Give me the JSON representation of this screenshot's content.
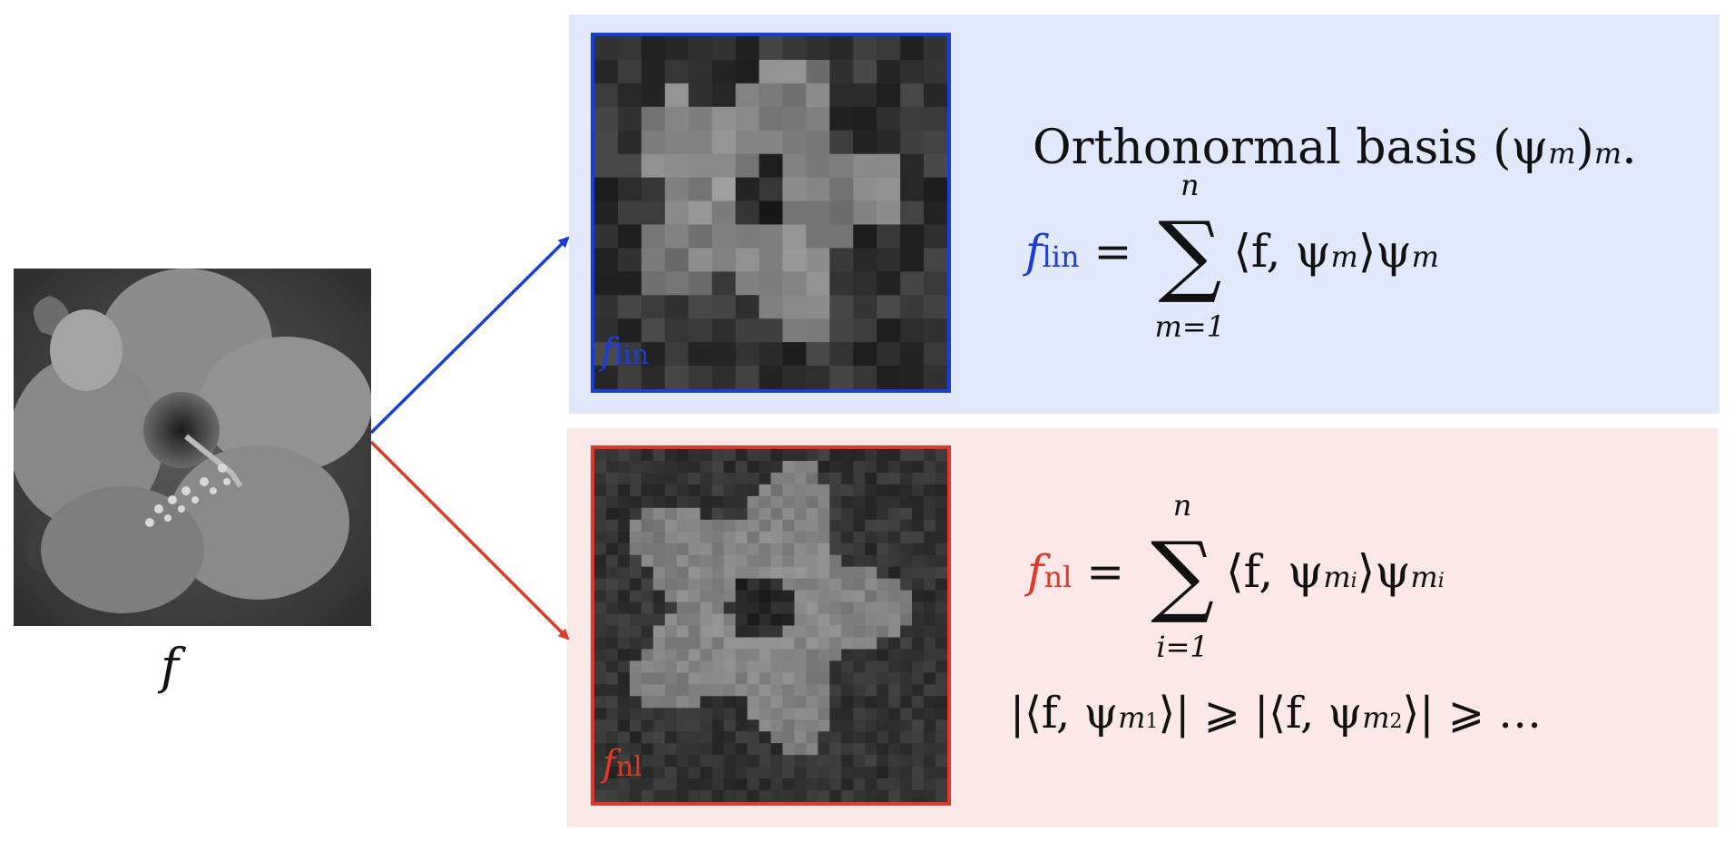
{
  "colors": {
    "linear": "#1a3fd6",
    "nonlinear": "#e03a26",
    "panel_linear_bg": "#e2e9fc",
    "panel_nonlinear_bg": "#fce8e8"
  },
  "original": {
    "label": "f"
  },
  "linear": {
    "corner_f": "f",
    "corner_sub": "lin",
    "title": "Orthonormal basis (ψ",
    "title_sub": "m",
    "title_end": ")",
    "title_end_sub": "m",
    "title_dot": ".",
    "eq_f": "f",
    "eq_sub": "lin",
    "eq_eq": "=",
    "sum_top": "n",
    "sum_bottom": "m=1",
    "eq_body": "⟨f, ψ",
    "eq_body_sub": "m",
    "eq_body_close": "⟩ψ",
    "eq_body_close_sub": "m"
  },
  "nonlinear": {
    "corner_f": "f",
    "corner_sub": "nl",
    "eq_f": "f",
    "eq_sub": "nl",
    "eq_eq": "=",
    "sum_top": "n",
    "sum_bottom": "i=1",
    "eq_body": "⟨f, ψ",
    "eq_body_sub": "m",
    "eq_body_sub2": "i",
    "eq_body_close": "⟩ψ",
    "eq_body_close_sub": "m",
    "eq_body_close_sub2": "i",
    "ineq_a": "|⟨f, ψ",
    "ineq_a_sub": "m",
    "ineq_a_sub2": "1",
    "ineq_b": "⟩| ⩾ |⟨f, ψ",
    "ineq_b_sub": "m",
    "ineq_b_sub2": "2",
    "ineq_c": "⟩| ⩾ …"
  }
}
